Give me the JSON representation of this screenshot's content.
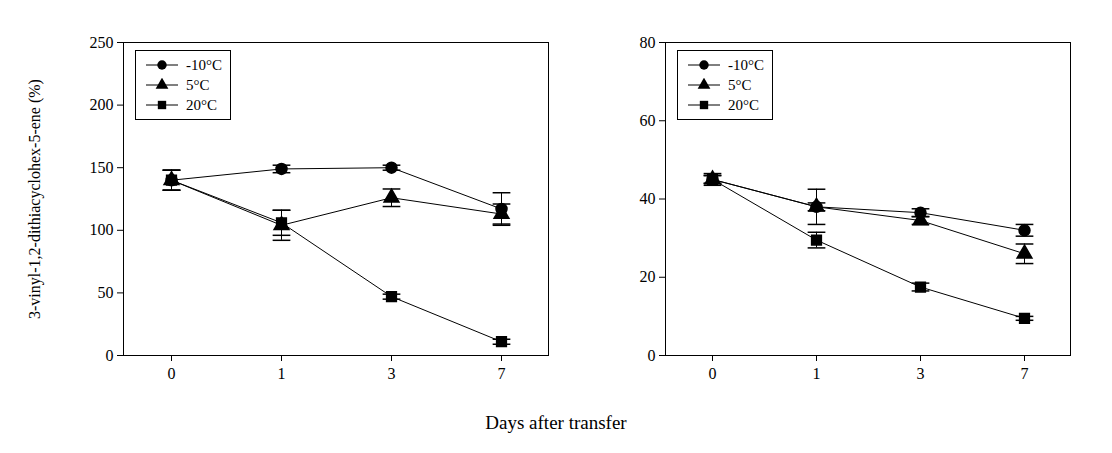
{
  "chart_data": [
    {
      "type": "line",
      "y_label": "3-vinyl-1,2-dithiacyclohex-5-ene (%)",
      "x_label": "Days after transfer",
      "categories": [
        "0",
        "1",
        "3",
        "7"
      ],
      "ylim": [
        0,
        250
      ],
      "yticks": [
        0,
        50,
        100,
        150,
        200,
        250
      ],
      "legend": "top-left",
      "series": [
        {
          "name": "-10°C",
          "color": "#000000",
          "marker": "circle",
          "values": [
            140,
            149,
            150,
            117
          ],
          "errors": [
            8,
            3,
            2,
            13
          ]
        },
        {
          "name": "5°C",
          "color": "#000000",
          "marker": "triangle",
          "values": [
            140,
            104,
            126,
            113
          ],
          "errors": [
            8,
            12,
            7,
            8
          ]
        },
        {
          "name": "20°C",
          "color": "#000000",
          "marker": "square",
          "values": [
            140,
            106,
            47,
            11
          ],
          "errors": [
            8,
            10,
            2,
            2
          ]
        }
      ]
    },
    {
      "type": "line",
      "categories": [
        "0",
        "1",
        "3",
        "7"
      ],
      "ylim": [
        0,
        80
      ],
      "yticks": [
        0,
        20,
        40,
        60,
        80
      ],
      "legend": "top-left",
      "series": [
        {
          "name": "-10°C",
          "color": "#000000",
          "marker": "circle",
          "values": [
            45,
            38,
            36.5,
            32
          ],
          "errors": [
            1.5,
            4.5,
            1,
            1.5
          ]
        },
        {
          "name": "5°C",
          "color": "#000000",
          "marker": "triangle",
          "values": [
            45,
            38,
            34.5,
            26
          ],
          "errors": [
            1,
            1,
            1,
            2.5
          ]
        },
        {
          "name": "20°C",
          "color": "#000000",
          "marker": "square",
          "values": [
            45,
            29.5,
            17.5,
            9.5
          ],
          "errors": [
            1,
            2,
            1,
            0.5
          ]
        }
      ]
    }
  ]
}
